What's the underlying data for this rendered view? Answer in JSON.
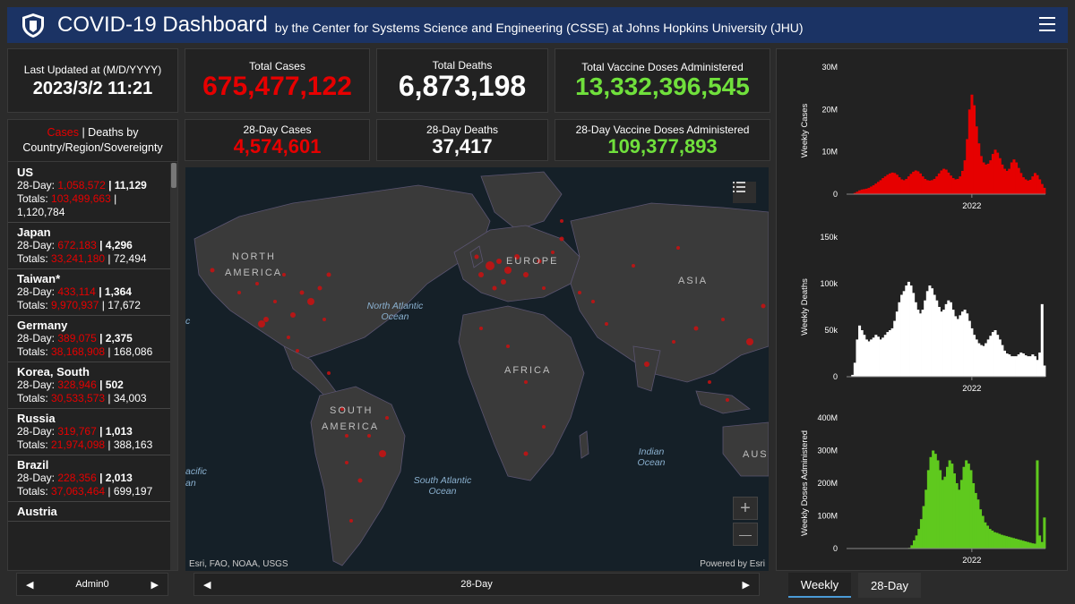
{
  "header": {
    "title": "COVID-19 Dashboard",
    "subtitle": "by the Center for Systems Science and Engineering (CSSE) at Johns Hopkins University (JHU)"
  },
  "last_updated": {
    "label": "Last Updated at (M/D/YYYY)",
    "value": "2023/3/2 11:21"
  },
  "totals": {
    "cases_label": "Total Cases",
    "cases": "675,477,122",
    "deaths_label": "Total Deaths",
    "deaths": "6,873,198",
    "vaccine_label": "Total Vaccine Doses Administered",
    "vaccine": "13,332,396,545"
  },
  "day28": {
    "cases_label": "28-Day Cases",
    "cases": "4,574,601",
    "deaths_label": "28-Day Deaths",
    "deaths": "37,417",
    "vaccine_label": "28-Day Vaccine Doses Administered",
    "vaccine": "109,377,893"
  },
  "country_list": {
    "title_cases": "Cases",
    "title_sep": " | ",
    "title_deaths": "Deaths by",
    "title_line2": "Country/Region/Sovereignty",
    "day28_prefix": "28-Day: ",
    "totals_prefix": "Totals: ",
    "sep": " | ",
    "items": [
      {
        "name": "US",
        "c28": "1,058,572",
        "d28": "11,129",
        "ct": "103,499,663",
        "dt": "1,120,784"
      },
      {
        "name": "Japan",
        "c28": "672,183",
        "d28": "4,296",
        "ct": "33,241,180",
        "dt": "72,494"
      },
      {
        "name": "Taiwan*",
        "c28": "433,114",
        "d28": "1,364",
        "ct": "9,970,937",
        "dt": "17,672"
      },
      {
        "name": "Germany",
        "c28": "389,075",
        "d28": "2,375",
        "ct": "38,168,908",
        "dt": "168,086"
      },
      {
        "name": "Korea, South",
        "c28": "328,946",
        "d28": "502",
        "ct": "30,533,573",
        "dt": "34,003"
      },
      {
        "name": "Russia",
        "c28": "319,767",
        "d28": "1,013",
        "ct": "21,974,098",
        "dt": "388,163"
      },
      {
        "name": "Brazil",
        "c28": "228,356",
        "d28": "2,013",
        "ct": "37,063,464",
        "dt": "699,197"
      },
      {
        "name": "Austria",
        "c28": "",
        "d28": "",
        "ct": "",
        "dt": ""
      }
    ]
  },
  "list_pager": {
    "label": "Admin0"
  },
  "map": {
    "labels": [
      "NORTH",
      "AMERICA",
      "EUROPE",
      "ASIA",
      "AFRICA",
      "SOUTH",
      "AMERICA",
      "AUS"
    ],
    "oceans": [
      "North Atlantic Ocean",
      "South Atlantic Ocean",
      "Indian Ocean",
      "acific",
      "an",
      "c"
    ],
    "attribution": "Esri, FAO, NOAA, USGS",
    "powered": "Powered by Esri",
    "zoom_in": "+",
    "zoom_out": "—"
  },
  "map_pager": {
    "label": "28-Day"
  },
  "tabs": {
    "weekly": "Weekly",
    "day28": "28-Day"
  },
  "colors": {
    "cases": "#e60000",
    "deaths": "#ffffff",
    "vaccine": "#5fc91e",
    "header": "#1b3364"
  },
  "chart_data": [
    {
      "type": "area",
      "ylabel": "Weekly Cases",
      "yticks": [
        "0",
        "10M",
        "20M",
        "30M"
      ],
      "ylim": [
        0,
        30000000
      ],
      "xtick": "2022",
      "x_start": "2020-01",
      "x_end": "2023-03",
      "values": [
        0,
        0,
        0.1,
        0.3,
        0.6,
        0.9,
        1.1,
        1.2,
        1.3,
        1.5,
        1.8,
        2.1,
        2.5,
        2.9,
        3.3,
        3.8,
        4.2,
        4.6,
        4.9,
        5.1,
        5.0,
        4.6,
        4.0,
        3.5,
        3.3,
        3.6,
        4.2,
        4.8,
        5.3,
        5.6,
        5.4,
        4.9,
        4.2,
        3.6,
        3.3,
        3.2,
        3.3,
        3.6,
        4.2,
        4.9,
        5.6,
        6.0,
        5.8,
        5.1,
        4.4,
        3.8,
        3.5,
        3.6,
        4.2,
        5.5,
        8.0,
        13.0,
        20.0,
        23.5,
        21.0,
        16.0,
        12.0,
        9.0,
        7.5,
        7.0,
        7.2,
        8.0,
        9.5,
        10.5,
        9.8,
        8.5,
        7.0,
        6.0,
        5.5,
        6.0,
        7.5,
        8.2,
        7.5,
        6.2,
        5.0,
        4.0,
        3.5,
        3.2,
        3.4,
        4.2,
        5.0,
        4.5,
        3.5,
        2.4,
        1.5
      ]
    },
    {
      "type": "area",
      "ylabel": "Weekly Deaths",
      "yticks": [
        "0",
        "50k",
        "100k",
        "150k"
      ],
      "ylim": [
        0,
        150000
      ],
      "xtick": "2022",
      "x_start": "2020-01",
      "x_end": "2023-03",
      "values": [
        0,
        0,
        2,
        15,
        40,
        55,
        50,
        45,
        40,
        38,
        40,
        42,
        45,
        43,
        40,
        42,
        45,
        48,
        50,
        52,
        60,
        70,
        80,
        88,
        92,
        98,
        102,
        98,
        90,
        80,
        72,
        68,
        72,
        82,
        92,
        98,
        95,
        88,
        82,
        75,
        70,
        72,
        78,
        82,
        80,
        72,
        65,
        62,
        66,
        70,
        72,
        68,
        60,
        52,
        45,
        40,
        36,
        34,
        33,
        36,
        40,
        44,
        48,
        50,
        45,
        40,
        34,
        28,
        25,
        24,
        22,
        22,
        22,
        24,
        26,
        25,
        23,
        22,
        22,
        24,
        22,
        18,
        26,
        78,
        12
      ]
    },
    {
      "type": "area",
      "ylabel": "Weekly Doses Administered",
      "yticks": [
        "0",
        "100M",
        "200M",
        "300M",
        "400M"
      ],
      "ylim": [
        0,
        400000000
      ],
      "xtick": "2022",
      "x_start": "2020-01",
      "x_end": "2023-03",
      "values": [
        0,
        0,
        0,
        0,
        0,
        0,
        0,
        0,
        0,
        0,
        0,
        0,
        0,
        0,
        0,
        0,
        0,
        0,
        0,
        0,
        0,
        0,
        0,
        0,
        0,
        0,
        2,
        10,
        25,
        40,
        60,
        90,
        130,
        180,
        240,
        280,
        300,
        290,
        270,
        240,
        210,
        220,
        250,
        270,
        260,
        230,
        200,
        180,
        210,
        250,
        270,
        260,
        240,
        200,
        170,
        150,
        120,
        100,
        80,
        70,
        60,
        55,
        50,
        48,
        45,
        42,
        40,
        38,
        36,
        34,
        32,
        30,
        28,
        26,
        24,
        22,
        20,
        18,
        16,
        15,
        270,
        40,
        20,
        95
      ]
    }
  ]
}
